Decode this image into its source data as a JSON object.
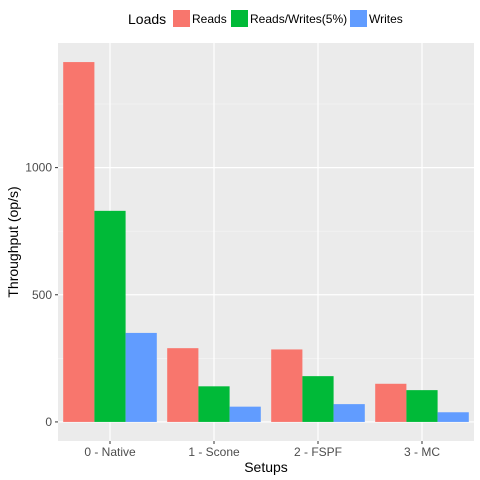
{
  "chart_data": {
    "type": "bar",
    "xlabel": "Setups",
    "ylabel": "Throughput (op/s)",
    "categories": [
      "0 - Native",
      "1 - Scone",
      "2 - FSPF",
      "3 - MC"
    ],
    "series": [
      {
        "name": "Reads",
        "color": "#F8766D",
        "values": [
          1415,
          290,
          285,
          150
        ]
      },
      {
        "name": "Reads/Writes(5%)",
        "color": "#00BA38",
        "values": [
          830,
          140,
          180,
          125
        ]
      },
      {
        "name": "Writes",
        "color": "#619CFF",
        "values": [
          350,
          60,
          70,
          38
        ]
      }
    ],
    "ylim": [
      -75,
      1490
    ],
    "yticks": [
      0,
      500,
      1000
    ],
    "ytick_labels": [
      "0",
      "500",
      "1000"
    ],
    "grid": true,
    "legend": {
      "title": "Loads",
      "position": "top"
    }
  }
}
